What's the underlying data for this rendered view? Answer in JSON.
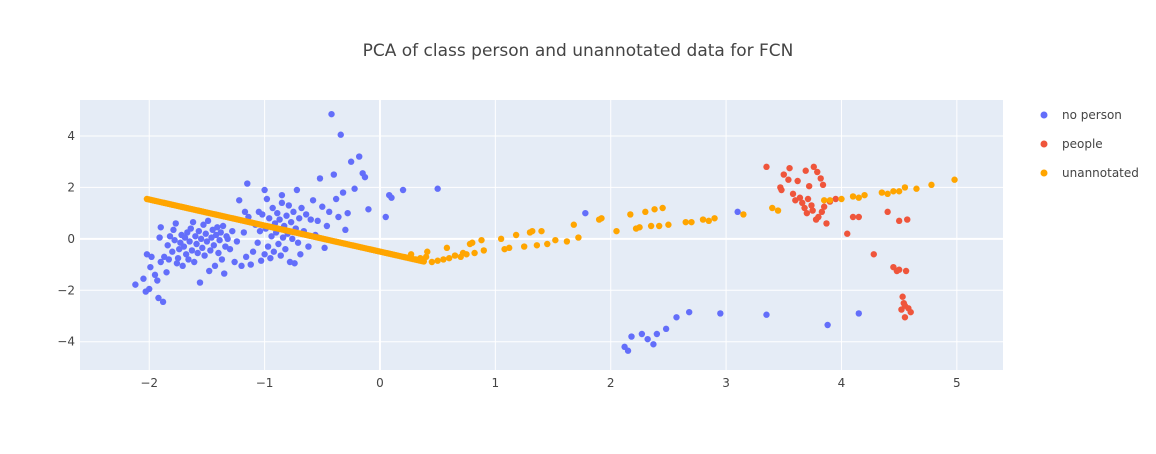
{
  "chart_data": {
    "type": "scatter",
    "title": "PCA of class person and unannotated data for FCN",
    "xlabel": "",
    "ylabel": "",
    "xlim": [
      -2.6,
      5.4
    ],
    "ylim": [
      -5.1,
      5.4
    ],
    "xticks": [
      -2,
      -1,
      0,
      1,
      2,
      3,
      4,
      5
    ],
    "xtick_labels": [
      "−2",
      "−1",
      "0",
      "1",
      "2",
      "3",
      "4",
      "5"
    ],
    "yticks": [
      -4,
      -2,
      0,
      2,
      4
    ],
    "ytick_labels": [
      "−4",
      "−2",
      "0",
      "2",
      "4"
    ],
    "grid": true,
    "legend_position": "top-right outside",
    "background": "#e5ecf6",
    "series": [
      {
        "name": "no person",
        "color": "#636efa",
        "points": [
          [
            -2.12,
            -1.78
          ],
          [
            -2.05,
            -1.55
          ],
          [
            -2.03,
            -2.05
          ],
          [
            -2.0,
            -1.95
          ],
          [
            -1.99,
            -1.1
          ],
          [
            -2.02,
            -0.6
          ],
          [
            -1.98,
            -0.7
          ],
          [
            -1.95,
            -1.4
          ],
          [
            -1.93,
            -1.62
          ],
          [
            -1.92,
            -2.3
          ],
          [
            -1.88,
            -2.45
          ],
          [
            -1.9,
            -0.9
          ],
          [
            -1.87,
            -0.7
          ],
          [
            -1.91,
            0.05
          ],
          [
            -1.9,
            0.45
          ],
          [
            -1.85,
            -1.3
          ],
          [
            -1.84,
            -0.25
          ],
          [
            -1.83,
            -0.8
          ],
          [
            -1.82,
            0.1
          ],
          [
            -1.8,
            -0.5
          ],
          [
            -1.79,
            0.35
          ],
          [
            -1.78,
            -0.05
          ],
          [
            -1.77,
            0.6
          ],
          [
            -1.76,
            -0.95
          ],
          [
            -1.75,
            -0.75
          ],
          [
            -1.74,
            -0.4
          ],
          [
            -1.73,
            -0.15
          ],
          [
            -1.72,
            0.15
          ],
          [
            -1.71,
            -1.05
          ],
          [
            -1.7,
            -0.3
          ],
          [
            -1.69,
            0.05
          ],
          [
            -1.68,
            -0.6
          ],
          [
            -1.67,
            0.25
          ],
          [
            -1.66,
            -0.8
          ],
          [
            -1.65,
            -0.1
          ],
          [
            -1.64,
            0.4
          ],
          [
            -1.63,
            -0.45
          ],
          [
            -1.62,
            0.65
          ],
          [
            -1.61,
            -0.9
          ],
          [
            -1.6,
            0.1
          ],
          [
            -1.59,
            -0.2
          ],
          [
            -1.58,
            -0.55
          ],
          [
            -1.57,
            0.3
          ],
          [
            -1.56,
            -1.7
          ],
          [
            -1.55,
            0.0
          ],
          [
            -1.54,
            -0.35
          ],
          [
            -1.53,
            0.55
          ],
          [
            -1.52,
            -0.65
          ],
          [
            -1.51,
            0.2
          ],
          [
            -1.5,
            -0.1
          ],
          [
            -1.49,
            0.7
          ],
          [
            -1.48,
            -1.25
          ],
          [
            -1.47,
            -0.45
          ],
          [
            -1.46,
            0.05
          ],
          [
            -1.45,
            0.35
          ],
          [
            -1.44,
            -0.25
          ],
          [
            -1.43,
            -1.05
          ],
          [
            -1.42,
            0.15
          ],
          [
            -1.41,
            0.45
          ],
          [
            -1.4,
            -0.55
          ],
          [
            -1.39,
            -0.05
          ],
          [
            -1.38,
            0.25
          ],
          [
            -1.37,
            -0.8
          ],
          [
            -1.36,
            0.5
          ],
          [
            -1.35,
            -1.35
          ],
          [
            -1.34,
            -0.3
          ],
          [
            -1.33,
            0.1
          ],
          [
            -1.32,
            0.0
          ],
          [
            -1.3,
            -0.4
          ],
          [
            -1.28,
            0.3
          ],
          [
            -1.26,
            -0.9
          ],
          [
            -1.24,
            -0.1
          ],
          [
            -1.22,
            1.5
          ],
          [
            -1.2,
            -1.05
          ],
          [
            -1.18,
            0.25
          ],
          [
            -1.16,
            -0.7
          ],
          [
            -1.14,
            0.85
          ],
          [
            -1.12,
            -1.0
          ],
          [
            -1.1,
            -0.5
          ],
          [
            -1.08,
            0.55
          ],
          [
            -1.06,
            -0.15
          ],
          [
            -1.05,
            1.05
          ],
          [
            -1.04,
            0.3
          ],
          [
            -1.03,
            -0.85
          ],
          [
            -1.02,
            0.95
          ],
          [
            -1.0,
            -0.6
          ],
          [
            -0.99,
            0.4
          ],
          [
            -0.98,
            1.55
          ],
          [
            -0.97,
            -0.3
          ],
          [
            -0.96,
            0.8
          ],
          [
            -0.95,
            -0.75
          ],
          [
            -0.94,
            0.1
          ],
          [
            -0.93,
            1.2
          ],
          [
            -0.92,
            -0.5
          ],
          [
            -0.91,
            0.6
          ],
          [
            -0.9,
            0.25
          ],
          [
            -0.89,
            1.0
          ],
          [
            -0.88,
            -0.2
          ],
          [
            -0.87,
            0.75
          ],
          [
            -0.86,
            -0.65
          ],
          [
            -0.85,
            1.4
          ],
          [
            -0.84,
            0.05
          ],
          [
            -0.83,
            0.5
          ],
          [
            -0.82,
            -0.4
          ],
          [
            -0.81,
            0.9
          ],
          [
            -0.8,
            0.2
          ],
          [
            -0.79,
            1.3
          ],
          [
            -0.78,
            -0.9
          ],
          [
            -0.77,
            0.65
          ],
          [
            -0.76,
            0.0
          ],
          [
            -0.75,
            1.05
          ],
          [
            -0.74,
            -0.95
          ],
          [
            -0.73,
            0.4
          ],
          [
            -0.72,
            1.9
          ],
          [
            -0.71,
            -0.15
          ],
          [
            -0.7,
            0.8
          ],
          [
            -0.69,
            -0.6
          ],
          [
            -0.68,
            1.2
          ],
          [
            -0.66,
            0.3
          ],
          [
            -0.64,
            0.95
          ],
          [
            -0.62,
            -0.3
          ],
          [
            -0.6,
            0.75
          ],
          [
            -0.58,
            1.5
          ],
          [
            -0.56,
            0.15
          ],
          [
            -0.54,
            0.7
          ],
          [
            -0.52,
            2.35
          ],
          [
            -0.5,
            1.25
          ],
          [
            -0.48,
            -0.35
          ],
          [
            -0.46,
            0.5
          ],
          [
            -0.44,
            1.05
          ],
          [
            -0.42,
            4.85
          ],
          [
            -0.4,
            2.5
          ],
          [
            -0.38,
            1.55
          ],
          [
            -0.36,
            0.85
          ],
          [
            -0.34,
            4.05
          ],
          [
            -0.32,
            1.8
          ],
          [
            -0.3,
            0.35
          ],
          [
            -0.28,
            1.0
          ],
          [
            -0.25,
            3.0
          ],
          [
            -0.22,
            1.95
          ],
          [
            -0.18,
            3.2
          ],
          [
            -0.15,
            2.55
          ],
          [
            -0.13,
            2.4
          ],
          [
            -0.1,
            1.15
          ],
          [
            0.05,
            0.85
          ],
          [
            0.08,
            1.7
          ],
          [
            0.1,
            1.6
          ],
          [
            0.2,
            1.9
          ],
          [
            0.5,
            1.95
          ],
          [
            -1.15,
            2.15
          ],
          [
            -1.17,
            1.05
          ],
          [
            -1.0,
            1.9
          ],
          [
            -0.85,
            1.7
          ],
          [
            1.78,
            1.0
          ],
          [
            2.12,
            -4.2
          ],
          [
            2.15,
            -4.35
          ],
          [
            2.18,
            -3.8
          ],
          [
            2.27,
            -3.7
          ],
          [
            2.32,
            -3.9
          ],
          [
            2.37,
            -4.1
          ],
          [
            2.4,
            -3.7
          ],
          [
            2.48,
            -3.5
          ],
          [
            2.57,
            -3.05
          ],
          [
            2.68,
            -2.85
          ],
          [
            2.95,
            -2.9
          ],
          [
            3.1,
            1.05
          ],
          [
            3.35,
            -2.95
          ],
          [
            3.88,
            -3.35
          ],
          [
            4.15,
            -2.9
          ]
        ]
      },
      {
        "name": "people",
        "color": "#ef553b",
        "points": [
          [
            3.35,
            2.8
          ],
          [
            3.47,
            2.0
          ],
          [
            3.48,
            1.9
          ],
          [
            3.5,
            2.5
          ],
          [
            3.54,
            2.3
          ],
          [
            3.55,
            2.75
          ],
          [
            3.58,
            1.75
          ],
          [
            3.6,
            1.5
          ],
          [
            3.62,
            2.25
          ],
          [
            3.64,
            1.6
          ],
          [
            3.66,
            1.4
          ],
          [
            3.68,
            1.2
          ],
          [
            3.69,
            2.65
          ],
          [
            3.7,
            1.0
          ],
          [
            3.71,
            1.55
          ],
          [
            3.72,
            2.05
          ],
          [
            3.74,
            1.3
          ],
          [
            3.75,
            1.1
          ],
          [
            3.76,
            2.8
          ],
          [
            3.78,
            0.75
          ],
          [
            3.79,
            2.6
          ],
          [
            3.8,
            0.85
          ],
          [
            3.82,
            2.35
          ],
          [
            3.83,
            1.05
          ],
          [
            3.84,
            2.1
          ],
          [
            3.85,
            1.25
          ],
          [
            3.87,
            0.6
          ],
          [
            3.9,
            1.45
          ],
          [
            3.95,
            1.55
          ],
          [
            4.05,
            0.2
          ],
          [
            4.1,
            0.85
          ],
          [
            4.15,
            0.85
          ],
          [
            4.28,
            -0.6
          ],
          [
            4.4,
            1.05
          ],
          [
            4.45,
            -1.1
          ],
          [
            4.48,
            -1.25
          ],
          [
            4.5,
            -1.2
          ],
          [
            4.5,
            0.7
          ],
          [
            4.52,
            -2.75
          ],
          [
            4.53,
            -2.25
          ],
          [
            4.54,
            -2.5
          ],
          [
            4.55,
            -2.6
          ],
          [
            4.55,
            -3.05
          ],
          [
            4.56,
            -1.25
          ],
          [
            4.57,
            0.75
          ],
          [
            4.58,
            -2.7
          ],
          [
            4.6,
            -2.85
          ]
        ]
      },
      {
        "name": "unannotated",
        "color": "#ffa500",
        "points": [
          [
            0.27,
            -0.6
          ],
          [
            0.31,
            -0.8
          ],
          [
            0.35,
            -0.75
          ],
          [
            0.4,
            -0.7
          ],
          [
            0.41,
            -0.5
          ],
          [
            0.45,
            -0.9
          ],
          [
            0.5,
            -0.85
          ],
          [
            0.55,
            -0.8
          ],
          [
            0.58,
            -0.35
          ],
          [
            0.6,
            -0.75
          ],
          [
            0.65,
            -0.65
          ],
          [
            0.7,
            -0.7
          ],
          [
            0.72,
            -0.55
          ],
          [
            0.75,
            -0.6
          ],
          [
            0.78,
            -0.2
          ],
          [
            0.8,
            -0.15
          ],
          [
            0.82,
            -0.55
          ],
          [
            0.88,
            -0.05
          ],
          [
            0.9,
            -0.45
          ],
          [
            1.05,
            0.0
          ],
          [
            1.08,
            -0.4
          ],
          [
            1.12,
            -0.35
          ],
          [
            1.18,
            0.15
          ],
          [
            1.25,
            -0.3
          ],
          [
            1.3,
            0.25
          ],
          [
            1.32,
            0.3
          ],
          [
            1.36,
            -0.25
          ],
          [
            1.4,
            0.3
          ],
          [
            1.45,
            -0.2
          ],
          [
            1.52,
            -0.05
          ],
          [
            1.62,
            -0.1
          ],
          [
            1.68,
            0.55
          ],
          [
            1.72,
            0.05
          ],
          [
            1.9,
            0.75
          ],
          [
            1.92,
            0.8
          ],
          [
            2.05,
            0.3
          ],
          [
            2.17,
            0.95
          ],
          [
            2.22,
            0.4
          ],
          [
            2.25,
            0.45
          ],
          [
            2.3,
            1.05
          ],
          [
            2.35,
            0.5
          ],
          [
            2.38,
            1.15
          ],
          [
            2.42,
            0.5
          ],
          [
            2.45,
            1.2
          ],
          [
            2.5,
            0.55
          ],
          [
            2.65,
            0.65
          ],
          [
            2.7,
            0.65
          ],
          [
            2.8,
            0.75
          ],
          [
            2.85,
            0.7
          ],
          [
            2.9,
            0.8
          ],
          [
            3.15,
            0.95
          ],
          [
            3.4,
            1.2
          ],
          [
            3.45,
            1.1
          ],
          [
            3.85,
            1.5
          ],
          [
            3.9,
            1.5
          ],
          [
            4.0,
            1.55
          ],
          [
            4.1,
            1.65
          ],
          [
            4.15,
            1.6
          ],
          [
            4.2,
            1.7
          ],
          [
            4.35,
            1.8
          ],
          [
            4.4,
            1.75
          ],
          [
            4.45,
            1.85
          ],
          [
            4.5,
            1.85
          ],
          [
            4.55,
            2.0
          ],
          [
            4.65,
            1.95
          ],
          [
            4.78,
            2.1
          ],
          [
            4.98,
            2.3
          ]
        ],
        "line_points": {
          "x_start": -2.02,
          "y_start": 1.55,
          "x_end": 0.38,
          "y_end": -0.88,
          "count": 130
        }
      }
    ]
  }
}
